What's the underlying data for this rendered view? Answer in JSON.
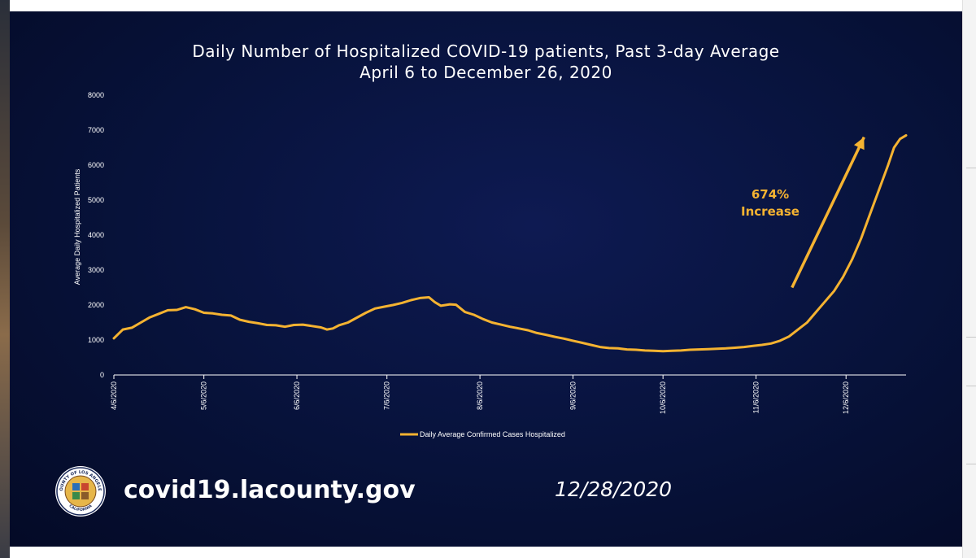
{
  "footer": {
    "url": "covid19.lacounty.gov",
    "date": "12/28/2020"
  },
  "seal": {
    "text_top": "COUNTY OF LOS ANGELES",
    "text_bottom": "CALIFORNIA"
  },
  "colors": {
    "line": "#f5b331",
    "annotation": "#f5b331",
    "axis": "#ffffff",
    "background": "#07123a"
  },
  "chart_data": {
    "type": "line",
    "title": "Daily Number of Hospitalized COVID-19 patients, Past 3-day Average",
    "subtitle": "April 6 to December 26, 2020",
    "xlabel": "",
    "ylabel": "Average Daily Hospitalized Patients",
    "ylim": [
      0,
      8000
    ],
    "yticks": [
      0,
      1000,
      2000,
      3000,
      4000,
      5000,
      6000,
      7000,
      8000
    ],
    "xlim": [
      0,
      264
    ],
    "xticks": [
      {
        "day": 0,
        "label": "4/6/2020"
      },
      {
        "day": 30,
        "label": "5/6/2020"
      },
      {
        "day": 61,
        "label": "6/6/2020"
      },
      {
        "day": 91,
        "label": "7/6/2020"
      },
      {
        "day": 122,
        "label": "8/6/2020"
      },
      {
        "day": 153,
        "label": "9/6/2020"
      },
      {
        "day": 183,
        "label": "10/6/2020"
      },
      {
        "day": 214,
        "label": "11/6/2020"
      },
      {
        "day": 244,
        "label": "12/6/2020"
      }
    ],
    "grid": false,
    "legend": "bottom-center",
    "series": [
      {
        "name": "Daily Average Confirmed Cases Hospitalized",
        "points": [
          [
            0,
            1050
          ],
          [
            3,
            1300
          ],
          [
            6,
            1350
          ],
          [
            9,
            1500
          ],
          [
            12,
            1650
          ],
          [
            15,
            1750
          ],
          [
            18,
            1850
          ],
          [
            21,
            1860
          ],
          [
            24,
            1940
          ],
          [
            27,
            1880
          ],
          [
            30,
            1780
          ],
          [
            33,
            1760
          ],
          [
            36,
            1720
          ],
          [
            39,
            1700
          ],
          [
            42,
            1580
          ],
          [
            45,
            1520
          ],
          [
            48,
            1480
          ],
          [
            51,
            1430
          ],
          [
            54,
            1420
          ],
          [
            57,
            1380
          ],
          [
            60,
            1430
          ],
          [
            63,
            1440
          ],
          [
            66,
            1400
          ],
          [
            69,
            1360
          ],
          [
            71,
            1300
          ],
          [
            73,
            1330
          ],
          [
            75,
            1420
          ],
          [
            78,
            1500
          ],
          [
            81,
            1640
          ],
          [
            84,
            1780
          ],
          [
            87,
            1900
          ],
          [
            90,
            1950
          ],
          [
            93,
            2000
          ],
          [
            96,
            2060
          ],
          [
            99,
            2140
          ],
          [
            102,
            2200
          ],
          [
            105,
            2220
          ],
          [
            107,
            2080
          ],
          [
            109,
            1980
          ],
          [
            112,
            2020
          ],
          [
            114,
            2010
          ],
          [
            117,
            1800
          ],
          [
            120,
            1720
          ],
          [
            123,
            1600
          ],
          [
            126,
            1500
          ],
          [
            129,
            1440
          ],
          [
            132,
            1380
          ],
          [
            135,
            1330
          ],
          [
            138,
            1280
          ],
          [
            141,
            1200
          ],
          [
            144,
            1150
          ],
          [
            147,
            1090
          ],
          [
            150,
            1040
          ],
          [
            153,
            980
          ],
          [
            156,
            920
          ],
          [
            159,
            860
          ],
          [
            162,
            800
          ],
          [
            165,
            770
          ],
          [
            168,
            760
          ],
          [
            171,
            730
          ],
          [
            174,
            720
          ],
          [
            177,
            700
          ],
          [
            180,
            690
          ],
          [
            183,
            680
          ],
          [
            186,
            690
          ],
          [
            189,
            700
          ],
          [
            192,
            720
          ],
          [
            195,
            730
          ],
          [
            198,
            740
          ],
          [
            201,
            750
          ],
          [
            204,
            760
          ],
          [
            207,
            780
          ],
          [
            210,
            800
          ],
          [
            213,
            830
          ],
          [
            216,
            860
          ],
          [
            219,
            900
          ],
          [
            222,
            980
          ],
          [
            225,
            1100
          ],
          [
            228,
            1300
          ],
          [
            231,
            1500
          ],
          [
            234,
            1800
          ],
          [
            237,
            2100
          ],
          [
            240,
            2400
          ],
          [
            243,
            2800
          ],
          [
            246,
            3300
          ],
          [
            249,
            3900
          ],
          [
            252,
            4600
          ],
          [
            255,
            5300
          ],
          [
            258,
            6000
          ],
          [
            260,
            6500
          ],
          [
            262,
            6750
          ],
          [
            264,
            6850
          ]
        ]
      }
    ],
    "annotations": [
      {
        "text_line1": "674%",
        "text_line2": "Increase",
        "arrow_from_day": 226,
        "arrow_from_value": 2500,
        "arrow_to_day": 250,
        "arrow_to_value": 6800
      }
    ]
  }
}
